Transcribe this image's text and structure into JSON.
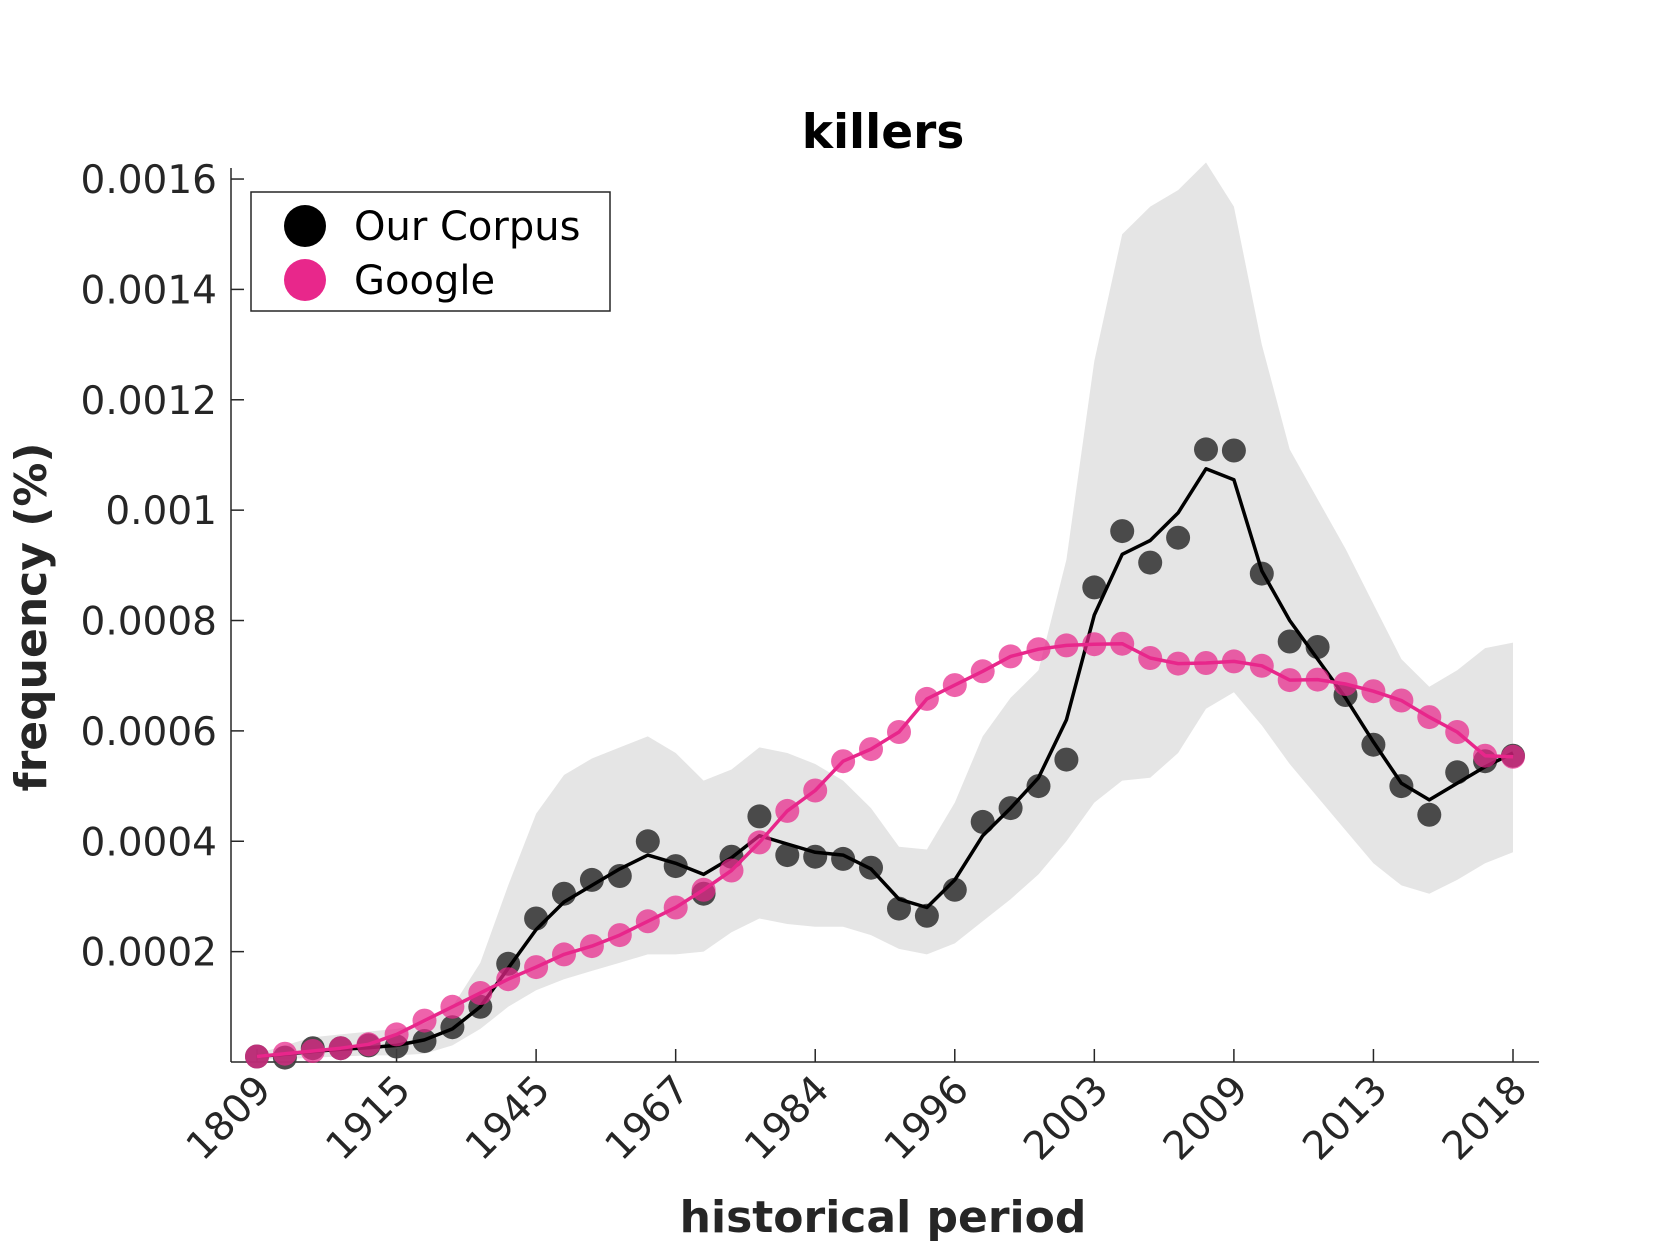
{
  "chart_data": {
    "type": "line",
    "title": "killers",
    "xlabel": "historical period",
    "ylabel": "frequency (%)",
    "ylim": [
      0,
      0.00162
    ],
    "yticks": [
      "0.0002",
      "0.0004",
      "0.0006",
      "0.0008",
      "0.001",
      "0.0012",
      "0.0014",
      "0.0016"
    ],
    "ytick_values": [
      0.0002,
      0.0004,
      0.0006,
      0.0008,
      0.001,
      0.0012,
      0.0014,
      0.0016
    ],
    "xticks": [
      "1809",
      "1915",
      "1945",
      "1967",
      "1984",
      "1996",
      "2003",
      "2009",
      "2013",
      "2018"
    ],
    "xtick_index": [
      0,
      5,
      10,
      15,
      20,
      25,
      30,
      35,
      40,
      45
    ],
    "x_count": 46,
    "legend": {
      "position": "top-left",
      "entries": [
        "Our Corpus",
        "Google"
      ]
    },
    "colors": {
      "corpus": "#3d3d3d",
      "corpus_line": "#000000",
      "google": "#e8278b",
      "band": "#e5e5e5"
    },
    "series": [
      {
        "name": "Our Corpus",
        "points": [
          1e-05,
          8e-06,
          2.5e-05,
          2.5e-05,
          3e-05,
          2.8e-05,
          3.8e-05,
          6.3e-05,
          0.0001,
          0.000178,
          0.00026,
          0.000305,
          0.00033,
          0.000337,
          0.0004,
          0.000355,
          0.000305,
          0.000372,
          0.000445,
          0.000375,
          0.000372,
          0.000368,
          0.000352,
          0.000278,
          0.000265,
          0.000312,
          0.000435,
          0.00046,
          0.0005,
          0.000548,
          0.00086,
          0.000962,
          0.000905,
          0.00095,
          0.00111,
          0.001108,
          0.000885,
          0.000762,
          0.000752,
          0.000665,
          0.000575,
          0.0005,
          0.000448,
          0.000525,
          0.000545,
          0.000555
        ],
        "smoothed": [
          1e-05,
          1.4e-05,
          1.9e-05,
          2.3e-05,
          2.6e-05,
          3e-05,
          4e-05,
          6e-05,
          0.0001,
          0.00017,
          0.00024,
          0.00029,
          0.00032,
          0.00035,
          0.000375,
          0.00036,
          0.00034,
          0.00037,
          0.00041,
          0.000395,
          0.00038,
          0.000375,
          0.00035,
          0.000295,
          0.00028,
          0.00033,
          0.00041,
          0.00046,
          0.000515,
          0.00062,
          0.00081,
          0.00092,
          0.000945,
          0.000995,
          0.001075,
          0.001055,
          0.00089,
          0.0008,
          0.00073,
          0.00066,
          0.00058,
          0.000505,
          0.000475,
          0.000505,
          0.000535,
          0.00056
        ],
        "band_upper": [
          1.5e-05,
          3e-05,
          4.5e-05,
          5e-05,
          5.5e-05,
          6e-05,
          7e-05,
          0.0001,
          0.00018,
          0.00032,
          0.00045,
          0.00052,
          0.00055,
          0.00057,
          0.00059,
          0.00056,
          0.00051,
          0.00053,
          0.00057,
          0.00056,
          0.00054,
          0.00051,
          0.00046,
          0.00039,
          0.000385,
          0.00047,
          0.00059,
          0.00066,
          0.00071,
          0.00091,
          0.00127,
          0.0015,
          0.00155,
          0.00158,
          0.00163,
          0.00155,
          0.0013,
          0.00111,
          0.00102,
          0.00093,
          0.00083,
          0.00073,
          0.00068,
          0.00071,
          0.00075,
          0.00076
        ],
        "band_lower": [
          5e-06,
          5e-06,
          8e-06,
          1e-05,
          1.2e-05,
          1.2e-05,
          1.5e-05,
          3e-05,
          6e-05,
          0.0001,
          0.00013,
          0.00015,
          0.000165,
          0.00018,
          0.000195,
          0.000195,
          0.0002,
          0.000235,
          0.00026,
          0.00025,
          0.000245,
          0.000245,
          0.00023,
          0.000205,
          0.000195,
          0.000215,
          0.000255,
          0.000295,
          0.00034,
          0.0004,
          0.00047,
          0.00051,
          0.000515,
          0.00056,
          0.00064,
          0.00067,
          0.00061,
          0.00054,
          0.00048,
          0.00042,
          0.00036,
          0.00032,
          0.000305,
          0.00033,
          0.00036,
          0.00038
        ]
      },
      {
        "name": "Google",
        "points": [
          1e-05,
          1.5e-05,
          2e-05,
          2.5e-05,
          3.2e-05,
          5e-05,
          7.5e-05,
          0.0001,
          0.000125,
          0.00015,
          0.000172,
          0.000195,
          0.00021,
          0.00023,
          0.000255,
          0.00028,
          0.000312,
          0.000347,
          0.000398,
          0.000455,
          0.000492,
          0.000545,
          0.000567,
          0.000598,
          0.000658,
          0.000683,
          0.000708,
          0.000735,
          0.000748,
          0.000755,
          0.000757,
          0.000758,
          0.000732,
          0.000722,
          0.000723,
          0.000726,
          0.000718,
          0.000692,
          0.000693,
          0.000685,
          0.000672,
          0.000655,
          0.000625,
          0.000598,
          0.000555,
          0.000553
        ]
      }
    ]
  }
}
